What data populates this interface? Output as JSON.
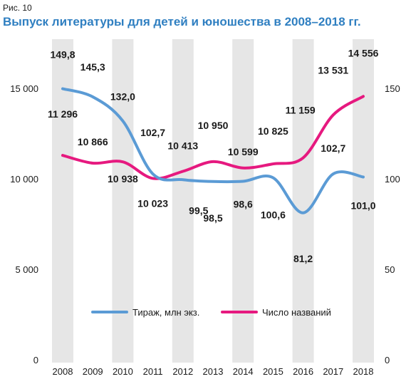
{
  "figure_label": "Рис. 10",
  "chart_data": {
    "type": "line",
    "title": "Выпуск литературы для детей и юношества в 2008–2018 гг.",
    "categories": [
      "2008",
      "2009",
      "2010",
      "2011",
      "2012",
      "2013",
      "2014",
      "2015",
      "2016",
      "2017",
      "2018"
    ],
    "y_left": {
      "ticks": [
        "0",
        "5 000",
        "10 000",
        "15 000"
      ],
      "tick_values": [
        0,
        5000,
        10000,
        15000
      ],
      "range": [
        0,
        20000
      ]
    },
    "y_right": {
      "ticks": [
        "0",
        "50",
        "100",
        "150"
      ],
      "tick_values": [
        0,
        50,
        100,
        150
      ],
      "range": [
        0,
        200
      ]
    },
    "grid": "alternating vertical bands",
    "legend_position": "bottom-center",
    "colors": {
      "band": "#e6e6e6",
      "tirazh": "#5b9bd5",
      "titles": "#e6197f"
    },
    "series": [
      {
        "name": "Тираж, млн экз.",
        "axis": "right",
        "values": [
          149.8,
          145.3,
          132.0,
          102.7,
          99.5,
          98.5,
          98.6,
          100.6,
          81.2,
          102.7,
          101.0
        ],
        "labels": [
          "149,8",
          "145,3",
          "132,0",
          "102,7",
          "99,5",
          "98,5",
          "98,6",
          "100,6",
          "81,2",
          "102,7",
          "101,0"
        ]
      },
      {
        "name": "Число названий",
        "axis": "left",
        "values": [
          11296,
          10866,
          10938,
          10023,
          10413,
          10950,
          10599,
          10825,
          11159,
          13531,
          14556
        ],
        "labels": [
          "11 296",
          "10 866",
          "10 938",
          "10 023",
          "10 413",
          "10 950",
          "10 599",
          "10 825",
          "11 159",
          "13 531",
          "14 556"
        ]
      }
    ]
  }
}
